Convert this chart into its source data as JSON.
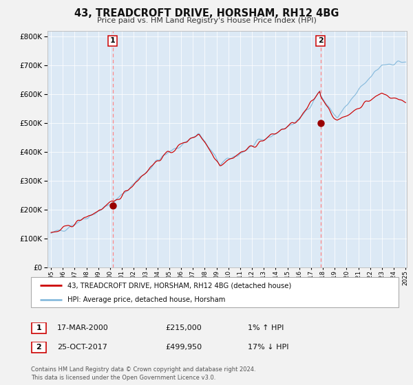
{
  "title": "43, TREADCROFT DRIVE, HORSHAM, RH12 4BG",
  "subtitle": "Price paid vs. HM Land Registry's House Price Index (HPI)",
  "background_color": "#dce9f5",
  "outer_bg_color": "#f2f2f2",
  "hpi_color": "#88bbdd",
  "price_color": "#cc0000",
  "marker_color": "#990000",
  "dashed_line_color": "#ff8888",
  "ylim": [
    0,
    820000
  ],
  "yticks": [
    0,
    100000,
    200000,
    300000,
    400000,
    500000,
    600000,
    700000,
    800000
  ],
  "x_start_year": 1995,
  "x_end_year": 2025,
  "event1_year": 2000.21,
  "event1_price": 215000,
  "event1_label": "1",
  "event1_date": "17-MAR-2000",
  "event1_hpi_note": "1% ↑ HPI",
  "event2_year": 2017.81,
  "event2_price": 499950,
  "event2_label": "2",
  "event2_date": "25-OCT-2017",
  "event2_hpi_note": "17% ↓ HPI",
  "legend_label1": "43, TREADCROFT DRIVE, HORSHAM, RH12 4BG (detached house)",
  "legend_label2": "HPI: Average price, detached house, Horsham",
  "footnote1": "Contains HM Land Registry data © Crown copyright and database right 2024.",
  "footnote2": "This data is licensed under the Open Government Licence v3.0."
}
